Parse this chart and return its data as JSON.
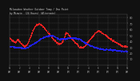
{
  "title_line1": "Milwaukee Weather Outdoor Temp / Dew Point",
  "title_line2": "by Minute  (24 Hours) (Alternate)",
  "background_color": "#111111",
  "plot_bg_color": "#111111",
  "temp_color": "#ff2020",
  "dew_color": "#2020ff",
  "grid_color": "#555555",
  "text_color": "#cccccc",
  "tick_color": "#aaaaaa",
  "ylim_min": 0,
  "ylim_max": 85,
  "ytick_values": [
    10,
    20,
    30,
    40,
    50,
    60,
    70,
    80
  ],
  "hours": 24,
  "minutes_per_hour": 60,
  "temp_points": [
    44,
    43,
    42,
    42,
    41,
    40,
    40,
    39,
    39,
    38,
    38,
    37,
    37,
    38,
    39,
    41,
    42,
    41,
    40,
    39,
    38,
    37,
    36,
    35,
    34,
    33,
    32,
    32,
    31,
    30,
    30,
    30,
    31,
    31,
    32,
    33,
    34,
    36,
    38,
    40,
    42,
    44,
    46,
    48,
    51,
    53,
    55,
    57,
    59,
    61,
    62,
    63,
    64,
    65,
    66,
    66,
    67,
    67,
    68,
    68,
    68,
    68,
    67,
    67,
    66,
    66,
    65,
    64,
    63,
    62,
    61,
    60,
    59,
    58,
    57,
    56,
    55,
    54,
    53,
    52,
    51,
    50,
    49,
    48,
    47,
    46,
    45,
    44,
    43,
    42,
    41,
    40,
    40,
    39,
    38,
    37,
    37,
    36,
    35,
    35,
    35,
    34,
    34,
    35,
    35,
    36,
    37,
    38,
    40,
    42,
    44,
    46,
    49,
    51,
    52,
    53,
    53,
    52,
    51,
    50,
    49,
    48,
    47,
    46,
    45,
    44,
    43,
    42,
    41,
    40,
    39,
    38,
    37,
    36,
    36,
    35,
    34,
    33,
    32,
    31,
    30,
    29,
    29,
    29,
    29,
    29,
    28,
    28,
    28,
    28,
    29,
    30,
    30,
    31,
    32,
    33,
    35,
    36,
    37,
    38,
    39,
    40,
    41,
    42,
    43,
    44,
    45,
    46,
    47,
    48,
    49,
    50,
    51,
    52,
    53,
    53,
    54,
    55,
    56,
    56,
    56,
    56,
    55,
    55,
    54,
    54,
    53,
    53,
    52,
    52,
    51,
    51,
    50,
    50,
    49,
    49,
    48,
    48,
    47,
    46,
    45,
    44,
    44,
    43,
    43,
    42,
    42,
    41,
    41,
    40,
    40,
    39,
    39,
    38,
    38,
    37,
    37,
    36,
    36,
    35,
    35,
    34,
    34,
    33,
    33,
    32,
    32,
    31,
    31,
    30,
    30,
    30,
    30,
    30,
    30,
    30,
    30,
    30,
    30,
    30
  ],
  "dew_points": [
    30,
    30,
    30,
    30,
    30,
    30,
    30,
    29,
    29,
    29,
    29,
    28,
    28,
    28,
    28,
    28,
    28,
    28,
    28,
    28,
    28,
    28,
    28,
    27,
    27,
    27,
    27,
    27,
    27,
    27,
    27,
    27,
    27,
    27,
    28,
    28,
    28,
    29,
    29,
    30,
    30,
    31,
    31,
    32,
    32,
    33,
    33,
    34,
    34,
    35,
    35,
    36,
    36,
    37,
    37,
    38,
    38,
    39,
    40,
    40,
    41,
    42,
    42,
    43,
    43,
    44,
    44,
    45,
    45,
    45,
    46,
    46,
    46,
    47,
    47,
    47,
    47,
    47,
    48,
    48,
    48,
    48,
    48,
    48,
    48,
    48,
    48,
    48,
    48,
    47,
    47,
    47,
    46,
    46,
    45,
    45,
    44,
    44,
    43,
    43,
    42,
    42,
    42,
    42,
    42,
    43,
    43,
    43,
    43,
    43,
    43,
    43,
    43,
    43,
    43,
    43,
    44,
    44,
    44,
    44,
    44,
    44,
    44,
    44,
    44,
    44,
    44,
    44,
    44,
    44,
    44,
    44,
    44,
    44,
    44,
    44,
    43,
    43,
    43,
    43,
    42,
    42,
    42,
    41,
    41,
    40,
    40,
    39,
    39,
    38,
    38,
    37,
    37,
    36,
    36,
    35,
    35,
    34,
    34,
    33,
    33,
    32,
    32,
    31,
    31,
    31,
    30,
    30,
    30,
    29,
    29,
    29,
    28,
    28,
    28,
    28,
    28,
    27,
    27,
    27,
    27,
    27,
    26,
    26,
    26,
    26,
    26,
    26,
    26,
    26,
    25,
    25,
    25,
    25,
    25,
    25,
    25,
    25,
    25,
    25,
    25,
    25,
    25,
    25,
    25,
    24,
    24,
    24,
    24,
    24,
    24,
    24,
    24,
    24,
    24,
    23,
    23,
    23,
    23,
    23,
    23,
    23,
    23,
    23,
    23,
    23,
    22,
    22,
    22,
    22,
    22,
    22,
    22,
    22,
    22,
    22,
    22,
    22,
    22,
    22
  ]
}
